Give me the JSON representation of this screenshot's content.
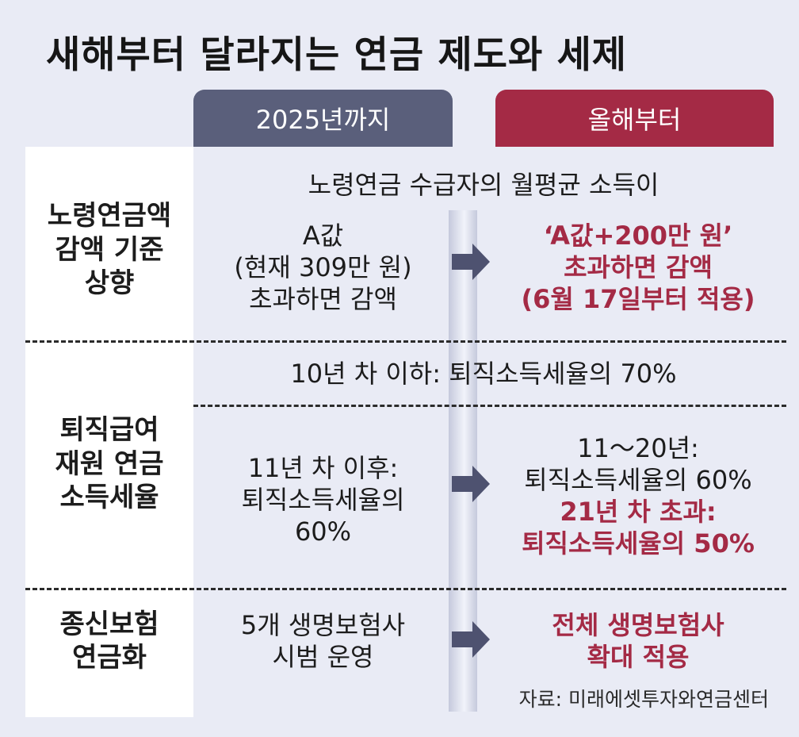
{
  "title": "새해부터 달라지는 연금 제도와 세제",
  "tabs": {
    "before": "2025년까지",
    "after": "올해부터"
  },
  "rows": [
    {
      "label": [
        "노령연금액",
        "감액 기준",
        "상향"
      ],
      "common": "노령연금 수급자의 월평균 소득이",
      "before": [
        "A값",
        "(현재 309만 원)",
        "초과하면 감액"
      ],
      "after": [
        "‘A값+200만 원’",
        "초과하면 감액",
        "(6월 17일부터 적용)"
      ]
    },
    {
      "label": [
        "퇴직급여",
        "재원 연금",
        "소득세율"
      ],
      "common": "10년 차 이하: 퇴직소득세율의 70%",
      "before": [
        "11년 차 이후:",
        "퇴직소득세율의",
        "60%"
      ],
      "after_plain": [
        "11～20년:",
        "퇴직소득세율의 60%"
      ],
      "after_highlight": [
        "21년 차 초과:",
        "퇴직소득세율의 50%"
      ]
    },
    {
      "label": [
        "종신보험",
        "연금화"
      ],
      "before": [
        "5개 생명보험사",
        "시범 운영"
      ],
      "after": [
        "전체 생명보험사",
        "확대 적용"
      ]
    }
  ],
  "source": "자료: 미래에셋투자와연금센터",
  "colors": {
    "background": "#e9ebf5",
    "before_tab": "#5a5f7b",
    "after_tab": "#a42a45",
    "highlight": "#a42a45"
  },
  "icons": [
    "arrow-right-icon"
  ]
}
